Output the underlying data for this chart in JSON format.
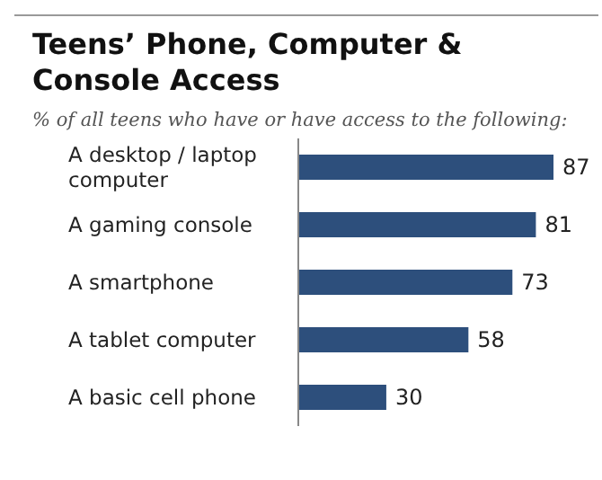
{
  "chart_data": {
    "type": "bar",
    "orientation": "horizontal",
    "title": "Teens’ Phone, Computer & Console Access",
    "subtitle": "% of all teens who have or have access to the following:",
    "categories": [
      "A desktop / laptop computer",
      "A gaming console",
      "A smartphone",
      "A tablet computer",
      "A basic cell phone"
    ],
    "values": [
      87,
      81,
      73,
      58,
      30
    ],
    "color": "#2d4f7c",
    "data_labels": true
  }
}
